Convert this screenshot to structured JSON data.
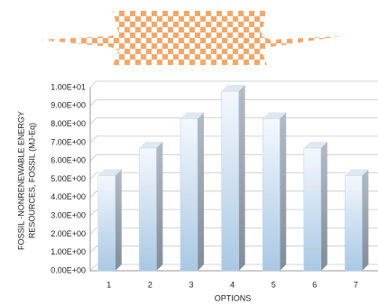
{
  "chart_data": {
    "type": "bar",
    "y_label_lines": [
      "FOSSIL -NONRENEWABLE ENERGY",
      "RESOURCES, FOSSIL (MJ-Eq)"
    ],
    "x_label": "OPTIONS",
    "categories": [
      "1",
      "2",
      "3",
      "4",
      "5",
      "6",
      "7"
    ],
    "values": [
      5.2,
      6.7,
      8.3,
      9.8,
      8.3,
      6.7,
      5.2
    ],
    "color": "#b9d3ea",
    "ylim": [
      0,
      10
    ],
    "yticks": [
      {
        "value": 0,
        "label": "0.00E+00"
      },
      {
        "value": 1,
        "label": "1.00E+00"
      },
      {
        "value": 2,
        "label": "2.00E+00"
      },
      {
        "value": 3,
        "label": "3.00E+00"
      },
      {
        "value": 4,
        "label": "4.00E+00"
      },
      {
        "value": 5,
        "label": "5.00E+00"
      },
      {
        "value": 6,
        "label": "6.00E+00"
      },
      {
        "value": 7,
        "label": "7.00E+00"
      },
      {
        "value": 8,
        "label": "8.00E+00"
      },
      {
        "value": 9,
        "label": "9.00E+00"
      },
      {
        "value": 10,
        "label": "1.00E+01"
      }
    ],
    "grid": true
  }
}
